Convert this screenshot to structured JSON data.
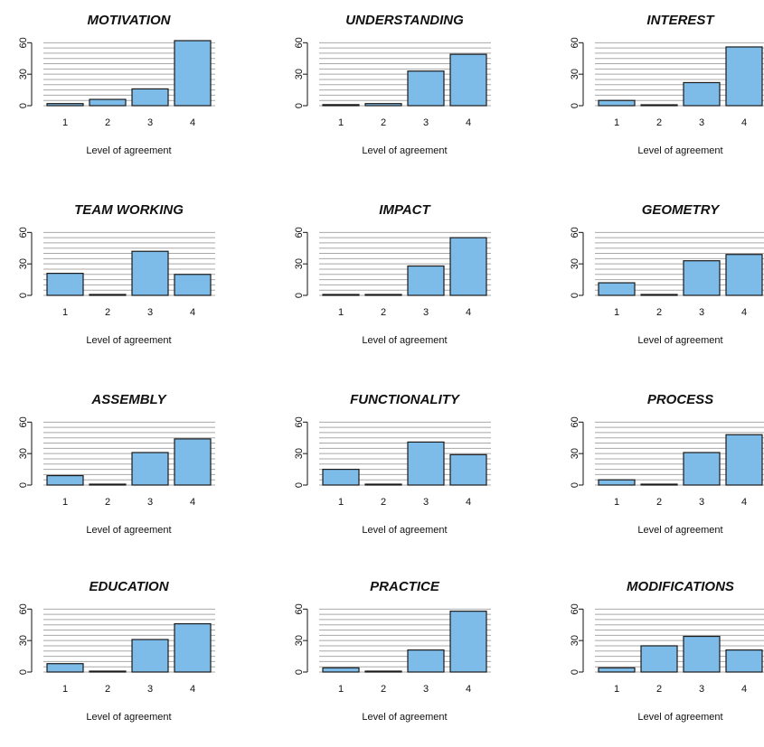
{
  "colors": {
    "bar_fill": "#7dbbe8",
    "bar_stroke": "#1a1a1a",
    "grid": "#a8a8a8",
    "axis": "#111111"
  },
  "chart_data": [
    {
      "type": "bar",
      "title": "MOTIVATION",
      "categories": [
        "1",
        "2",
        "3",
        "4"
      ],
      "values": [
        2,
        6,
        16,
        62
      ],
      "xlabel": "Level of agreement",
      "ylabel": "",
      "ylim": [
        0,
        62
      ],
      "yticks": [
        "0",
        "30",
        "60"
      ],
      "grid": true
    },
    {
      "type": "bar",
      "title": "UNDERSTANDING",
      "categories": [
        "1",
        "2",
        "3",
        "4"
      ],
      "values": [
        1,
        2,
        33,
        49
      ],
      "xlabel": "Level of agreement",
      "ylabel": "",
      "ylim": [
        0,
        62
      ],
      "yticks": [
        "0",
        "30",
        "60"
      ],
      "grid": true
    },
    {
      "type": "bar",
      "title": "INTEREST",
      "categories": [
        "1",
        "2",
        "3",
        "4"
      ],
      "values": [
        5,
        0,
        22,
        56
      ],
      "xlabel": "Level of agreement",
      "ylabel": "",
      "ylim": [
        0,
        62
      ],
      "yticks": [
        "0",
        "30",
        "60"
      ],
      "grid": true
    },
    {
      "type": "bar",
      "title": "TEAM WORKING",
      "categories": [
        "1",
        "2",
        "3",
        "4"
      ],
      "values": [
        21,
        0,
        42,
        20
      ],
      "xlabel": "Level of agreement",
      "ylabel": "",
      "ylim": [
        0,
        62
      ],
      "yticks": [
        "0",
        "30",
        "60"
      ],
      "grid": true
    },
    {
      "type": "bar",
      "title": "IMPACT",
      "categories": [
        "1",
        "2",
        "3",
        "4"
      ],
      "values": [
        0,
        0,
        28,
        55
      ],
      "xlabel": "Level of agreement",
      "ylabel": "",
      "ylim": [
        0,
        62
      ],
      "yticks": [
        "0",
        "30",
        "60"
      ],
      "grid": true
    },
    {
      "type": "bar",
      "title": "GEOMETRY",
      "categories": [
        "1",
        "2",
        "3",
        "4"
      ],
      "values": [
        12,
        0,
        33,
        39
      ],
      "xlabel": "Level of agreement",
      "ylabel": "",
      "ylim": [
        0,
        62
      ],
      "yticks": [
        "0",
        "30",
        "60"
      ],
      "grid": true
    },
    {
      "type": "bar",
      "title": "ASSEMBLY",
      "categories": [
        "1",
        "2",
        "3",
        "4"
      ],
      "values": [
        9,
        0,
        31,
        44
      ],
      "xlabel": "Level of agreement",
      "ylabel": "",
      "ylim": [
        0,
        62
      ],
      "yticks": [
        "0",
        "30",
        "60"
      ],
      "grid": true
    },
    {
      "type": "bar",
      "title": "FUNCTIONALITY",
      "categories": [
        "1",
        "2",
        "3",
        "4"
      ],
      "values": [
        15,
        0,
        41,
        29
      ],
      "xlabel": "Level of agreement",
      "ylabel": "",
      "ylim": [
        0,
        62
      ],
      "yticks": [
        "0",
        "30",
        "60"
      ],
      "grid": true
    },
    {
      "type": "bar",
      "title": "PROCESS",
      "categories": [
        "1",
        "2",
        "3",
        "4"
      ],
      "values": [
        5,
        0,
        31,
        48
      ],
      "xlabel": "Level of agreement",
      "ylabel": "",
      "ylim": [
        0,
        62
      ],
      "yticks": [
        "0",
        "30",
        "60"
      ],
      "grid": true
    },
    {
      "type": "bar",
      "title": "EDUCATION",
      "categories": [
        "1",
        "2",
        "3",
        "4"
      ],
      "values": [
        8,
        0,
        31,
        46
      ],
      "xlabel": "Level of agreement",
      "ylabel": "",
      "ylim": [
        0,
        62
      ],
      "yticks": [
        "0",
        "30",
        "60"
      ],
      "grid": true
    },
    {
      "type": "bar",
      "title": "PRACTICE",
      "categories": [
        "1",
        "2",
        "3",
        "4"
      ],
      "values": [
        4,
        0,
        21,
        58
      ],
      "xlabel": "Level of agreement",
      "ylabel": "",
      "ylim": [
        0,
        62
      ],
      "yticks": [
        "0",
        "30",
        "60"
      ],
      "grid": true
    },
    {
      "type": "bar",
      "title": "MODIFICATIONS",
      "categories": [
        "1",
        "2",
        "3",
        "4"
      ],
      "values": [
        4,
        25,
        34,
        21
      ],
      "xlabel": "Level of agreement",
      "ylabel": "",
      "ylim": [
        0,
        62
      ],
      "yticks": [
        "0",
        "30",
        "60"
      ],
      "grid": true
    }
  ]
}
